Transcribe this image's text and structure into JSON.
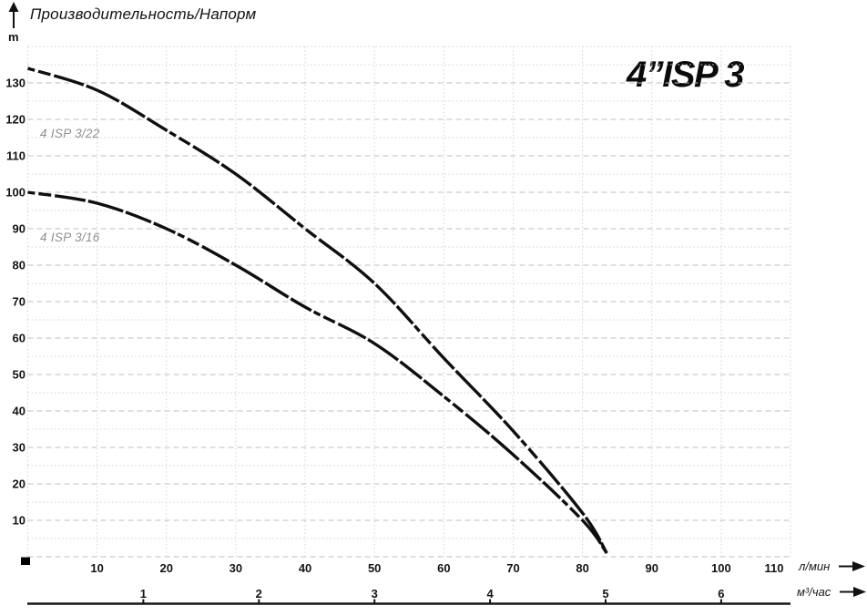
{
  "header": {
    "axis_title": "Производительность/Напорм"
  },
  "chart_data": {
    "type": "line",
    "title": "4”ISP 3",
    "y_axis": {
      "label": "m",
      "min": 0,
      "max": 140,
      "major_step": 10,
      "minor_step": 5,
      "ticks": [
        10,
        20,
        30,
        40,
        50,
        60,
        70,
        80,
        90,
        100,
        110,
        120,
        130
      ]
    },
    "x_axis_primary": {
      "label": "л/мин",
      "min": 0,
      "max": 110,
      "tick_step": 10,
      "ticks": [
        10,
        20,
        30,
        40,
        50,
        60,
        70,
        80,
        90,
        100,
        110
      ]
    },
    "x_axis_secondary": {
      "label": "м³/час",
      "ticks": [
        1,
        2,
        3,
        4,
        5,
        6
      ]
    },
    "grid": {
      "horizontal_major": "dashed",
      "horizontal_minor": "dotted",
      "vertical": "dotted"
    },
    "series": [
      {
        "name": "4 ISP 3/22",
        "points": [
          [
            0,
            134
          ],
          [
            10,
            128
          ],
          [
            20,
            117
          ],
          [
            30,
            105
          ],
          [
            40,
            90
          ],
          [
            50,
            75
          ],
          [
            60,
            54.5
          ],
          [
            70,
            34.5
          ],
          [
            80,
            12
          ],
          [
            83.5,
            1
          ]
        ]
      },
      {
        "name": "4 ISP 3/16",
        "points": [
          [
            0,
            100
          ],
          [
            10,
            97
          ],
          [
            20,
            90
          ],
          [
            30,
            80
          ],
          [
            40,
            68.5
          ],
          [
            50,
            58.5
          ],
          [
            60,
            44
          ],
          [
            70,
            28
          ],
          [
            80,
            10
          ],
          [
            83.5,
            1
          ]
        ]
      }
    ]
  }
}
